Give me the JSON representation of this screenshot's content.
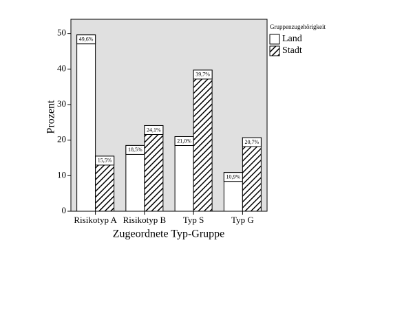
{
  "chart_data": {
    "type": "bar",
    "xlabel": "Zugeordnete Typ-Gruppe",
    "ylabel": "Prozent",
    "legend_title": "Gruppenzugehörigkeit",
    "categories": [
      "Risikotyp A",
      "Risikotyp B",
      "Typ S",
      "Typ G"
    ],
    "series": [
      {
        "name": "Land",
        "color": "#ffffff",
        "hatch": false,
        "values": [
          49.6,
          18.5,
          21.0,
          10.9
        ],
        "value_labels": [
          "49,6%",
          "18,5%",
          "21,0%",
          "10,9%"
        ]
      },
      {
        "name": "Stadt",
        "color": "#ffffff",
        "hatch": true,
        "values": [
          15.5,
          24.1,
          39.7,
          20.7
        ],
        "value_labels": [
          "15,5%",
          "24,1%",
          "39,7%",
          "20,7%"
        ]
      }
    ],
    "ylim": [
      0,
      54
    ],
    "yticks": [
      0,
      10,
      20,
      30,
      40,
      50
    ],
    "background": "#e0e0e0",
    "legend": "right"
  }
}
